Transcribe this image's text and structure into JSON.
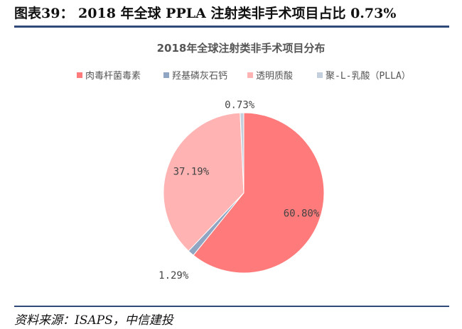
{
  "figure": {
    "title": "图表39： 2018 年全球 PPLA 注射类非手术项目占比 0.73%",
    "source": "资料来源：ISAPS，中信建投"
  },
  "chart_data": {
    "type": "pie",
    "title": "2018年全球注射类非手术项目分布",
    "legend_position": "top",
    "slices": [
      {
        "name": "肉毒杆菌毒素",
        "value": 60.8,
        "label": "60.80%",
        "color": "#ff7b7b"
      },
      {
        "name": "羟基磷灰石钙",
        "value": 1.29,
        "label": "1.29%",
        "color": "#8fa5c2"
      },
      {
        "name": "透明质酸",
        "value": 37.19,
        "label": "37.19%",
        "color": "#ffb3b3"
      },
      {
        "name": "聚-L-乳酸（PLLA）",
        "value": 0.73,
        "label": "0.73%",
        "color": "#c4cfdd"
      }
    ]
  }
}
